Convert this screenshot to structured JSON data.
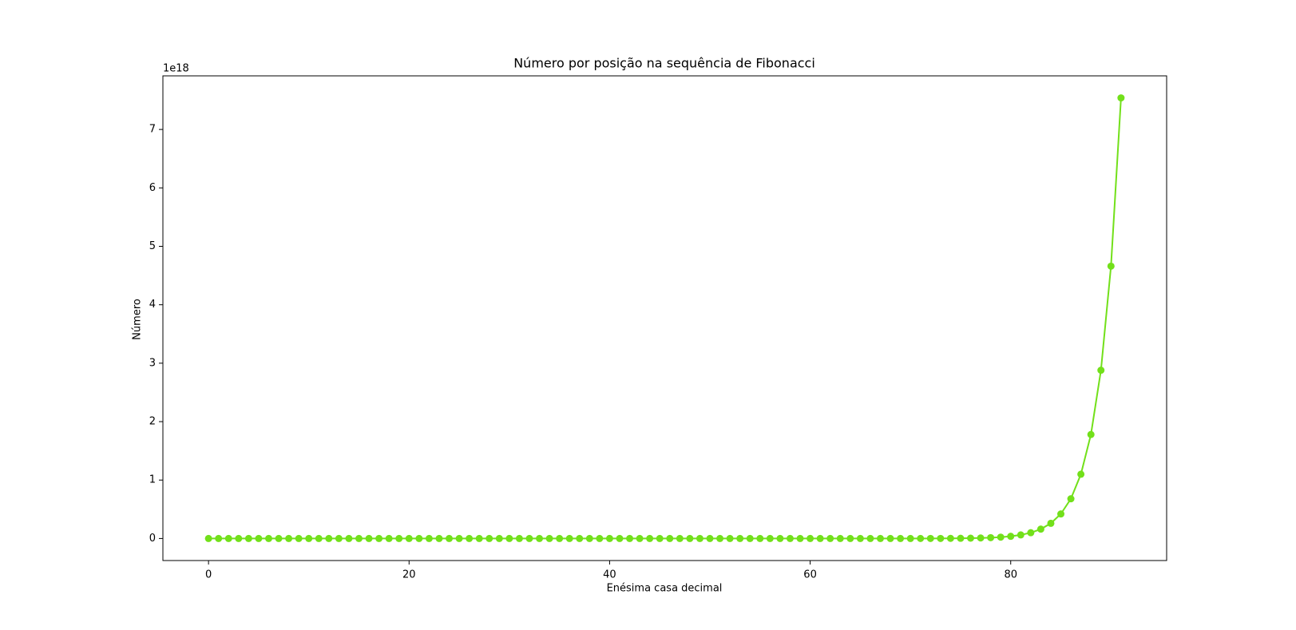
{
  "chart_data": {
    "type": "line",
    "title": "Número por posição na sequência de Fibonacci",
    "x_label": "Enésima casa decimal",
    "y_label": "Número",
    "y_offset_label": "1e18",
    "color": "#72e01a",
    "marker": "circle",
    "x": [
      0,
      1,
      2,
      3,
      4,
      5,
      6,
      7,
      8,
      9,
      10,
      11,
      12,
      13,
      14,
      15,
      16,
      17,
      18,
      19,
      20,
      21,
      22,
      23,
      24,
      25,
      26,
      27,
      28,
      29,
      30,
      31,
      32,
      33,
      34,
      35,
      36,
      37,
      38,
      39,
      40,
      41,
      42,
      43,
      44,
      45,
      46,
      47,
      48,
      49,
      50,
      51,
      52,
      53,
      54,
      55,
      56,
      57,
      58,
      59,
      60,
      61,
      62,
      63,
      64,
      65,
      66,
      67,
      68,
      69,
      70,
      71,
      72,
      73,
      74,
      75,
      76,
      77,
      78,
      79,
      80,
      81,
      82,
      83,
      84,
      85,
      86,
      87,
      88,
      89,
      90,
      91
    ],
    "values": [
      1,
      1,
      2,
      3,
      5,
      8,
      13,
      21,
      34,
      55,
      89,
      144,
      233,
      377,
      610,
      987,
      1597,
      2584,
      4181,
      6765,
      10946,
      17711,
      28657,
      46368,
      75025,
      121393,
      196418,
      317811,
      514229,
      832040,
      1346269,
      2178309,
      3524578,
      5702887,
      9227465,
      14930352,
      24157817,
      39088169,
      63245986,
      102334155,
      165580141,
      267914296,
      433494437,
      701408733,
      1134903170,
      1836311903,
      2971215073,
      4807526976,
      7778742049,
      12586269025,
      20365011074,
      32951280099,
      53316291173,
      86267571272,
      139583862445,
      225851433717,
      365435296162,
      591286729879,
      956722026041,
      1548008755920,
      2504730781961,
      4052739537881,
      6557470319842,
      10610209857723,
      17167680177565,
      27777890035288,
      44945570212853,
      72723460248141,
      117669030460994,
      190392490709135,
      308061521170129,
      498454011879264,
      806515533049393,
      1304969544928657,
      2111485077978050,
      3416454622906707,
      5527939700884757,
      8944394323791464,
      14472334024676221,
      23416728348467685,
      37889062373143906,
      61305790721611591,
      99194853094755497,
      160500643816367088,
      259695496911122585,
      420196140727489673,
      679891637638612258,
      1100087778366101931,
      1779979416004714189,
      2880067194370816120,
      4660046610375530309,
      7540113804746346429
    ],
    "xlim": [
      -4.55,
      95.55
    ],
    "xticks": [
      0,
      20,
      40,
      60,
      80
    ],
    "ylim": [
      -377005690237317300,
      7917119494983663800
    ],
    "yticks": [
      0,
      {
        "value": 1000000000000000000,
        "label": "1"
      },
      {
        "value": 2000000000000000000,
        "label": "2"
      },
      {
        "value": 3000000000000000000,
        "label": "3"
      },
      {
        "value": 4000000000000000000,
        "label": "4"
      },
      {
        "value": 5000000000000000000,
        "label": "5"
      },
      {
        "value": 6000000000000000000,
        "label": "6"
      },
      {
        "value": 7000000000000000000,
        "label": "7"
      }
    ],
    "grid": false
  }
}
